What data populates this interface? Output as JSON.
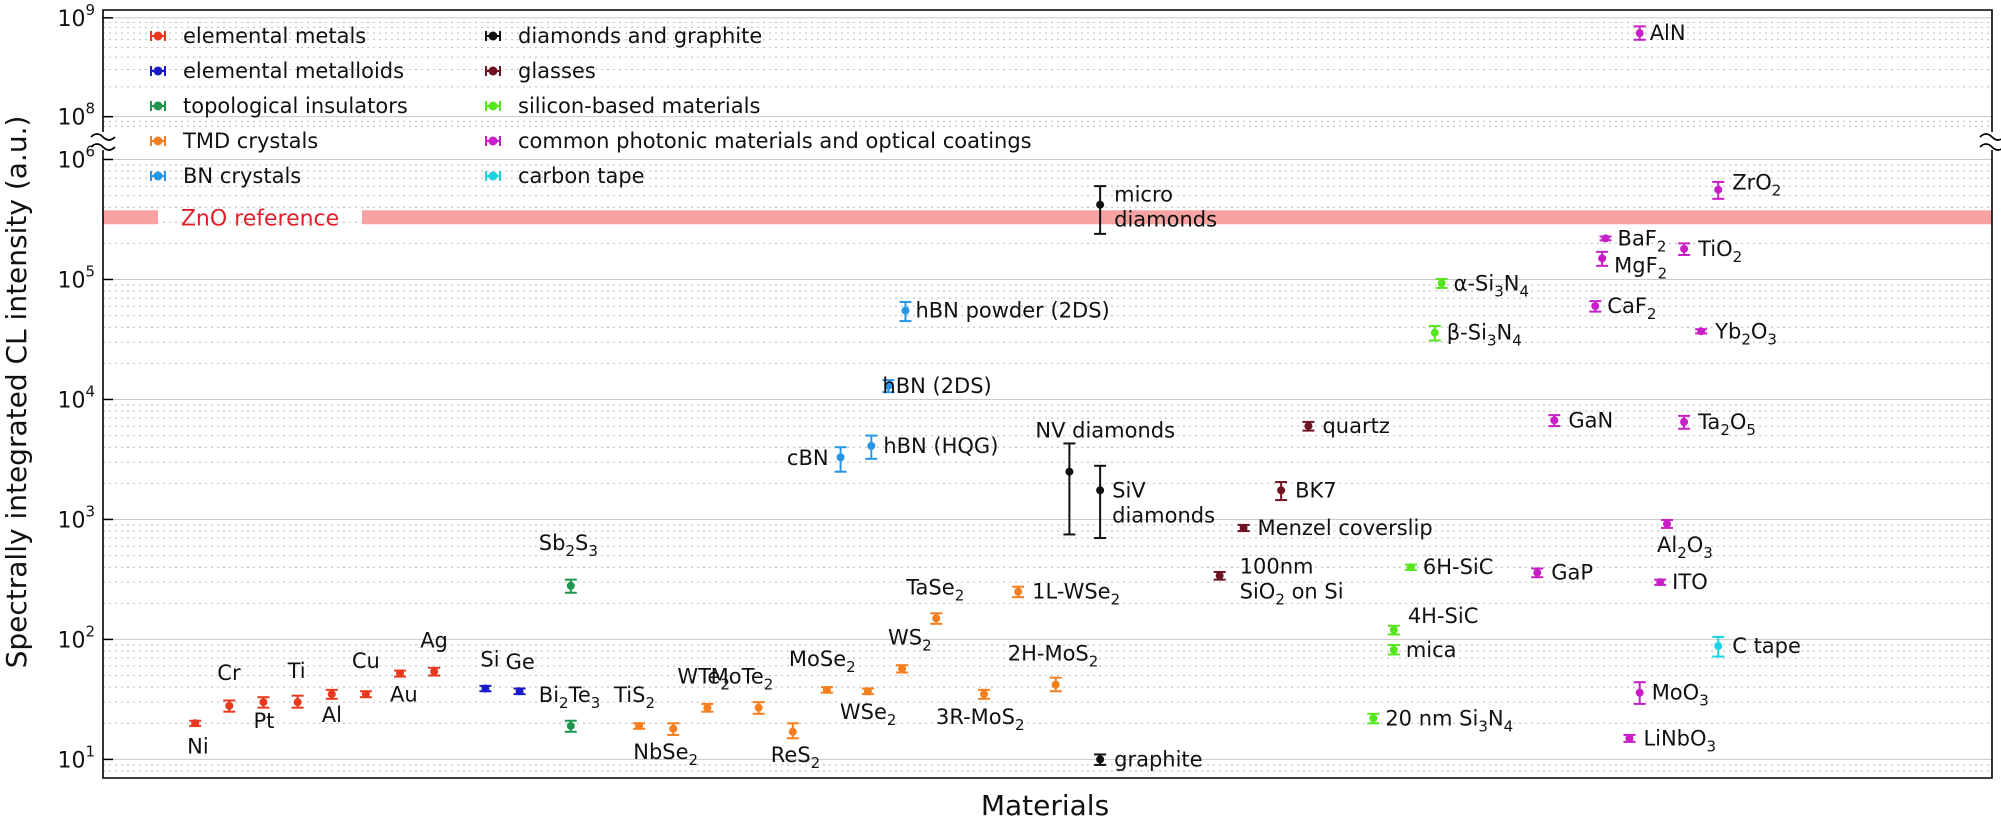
{
  "chart_data": {
    "type": "scatter",
    "xlabel": "Materials",
    "ylabel": "Spectrally integrated CL intensity (a.u.)",
    "yscale": "log",
    "ylim": [
      7,
      1200000000
    ],
    "axis_break": [
      1200000,
      80000000
    ],
    "y_ticks": [
      {
        "value": 10,
        "base": "10",
        "exp": "1"
      },
      {
        "value": 100,
        "base": "10",
        "exp": "2"
      },
      {
        "value": 1000,
        "base": "10",
        "exp": "3"
      },
      {
        "value": 10000,
        "base": "10",
        "exp": "4"
      },
      {
        "value": 100000,
        "base": "10",
        "exp": "5"
      },
      {
        "value": 1000000,
        "base": "10",
        "exp": "6"
      },
      {
        "value": 100000000,
        "base": "10",
        "exp": "8"
      },
      {
        "value": 1000000000,
        "base": "10",
        "exp": "9"
      }
    ],
    "grid": true,
    "legend_position": "top-left",
    "reference": {
      "label": "ZnO reference",
      "value": 330000,
      "color": "#f7a3a3",
      "text_color": "#e0202a"
    },
    "categories": [
      {
        "name": "elemental metals",
        "color": "#e8391e"
      },
      {
        "name": "elemental metalloids",
        "color": "#1a1ac8"
      },
      {
        "name": "topological insulators",
        "color": "#1e9650"
      },
      {
        "name": "TMD crystals",
        "color": "#f57e1e"
      },
      {
        "name": "BN crystals",
        "color": "#2896e6"
      },
      {
        "name": "diamonds and graphite",
        "color": "#111111"
      },
      {
        "name": "glasses",
        "color": "#6e1423"
      },
      {
        "name": "silicon-based materials",
        "color": "#55e61e"
      },
      {
        "name": "common photonic materials and optical coatings",
        "color": "#c81ec8"
      },
      {
        "name": "carbon tape",
        "color": "#1ed2e6"
      }
    ],
    "points": [
      {
        "label": "Ni",
        "cat": 0,
        "x": 1,
        "y": 20,
        "lo": 19,
        "hi": 21
      },
      {
        "label": "Cr",
        "cat": 0,
        "x": 2,
        "y": 28,
        "lo": 25,
        "hi": 31
      },
      {
        "label": "Pt",
        "cat": 0,
        "x": 3,
        "y": 30,
        "lo": 27,
        "hi": 33
      },
      {
        "label": "Ti",
        "cat": 0,
        "x": 4,
        "y": 30,
        "lo": 27,
        "hi": 34
      },
      {
        "label": "Al",
        "cat": 0,
        "x": 5,
        "y": 35,
        "lo": 32,
        "hi": 38
      },
      {
        "label": "Cu",
        "cat": 0,
        "x": 6,
        "y": 35,
        "lo": 33,
        "hi": 37
      },
      {
        "label": "Au",
        "cat": 0,
        "x": 7,
        "y": 52,
        "lo": 49,
        "hi": 55
      },
      {
        "label": "Ag",
        "cat": 0,
        "x": 8,
        "y": 54,
        "lo": 50,
        "hi": 58
      },
      {
        "label": "Si",
        "cat": 1,
        "x": 9.5,
        "y": 39,
        "lo": 37,
        "hi": 41
      },
      {
        "label": "Ge",
        "cat": 1,
        "x": 10.5,
        "y": 37,
        "lo": 35,
        "hi": 39
      },
      {
        "label": "Sb",
        "sub": "2",
        "label2": "S",
        "sub2": "3",
        "cat": 2,
        "x": 12,
        "y": 280,
        "lo": 245,
        "hi": 315
      },
      {
        "label": "Bi",
        "sub": "2",
        "label2": "Te",
        "sub2": "3",
        "cat": 2,
        "x": 12,
        "y": 19,
        "lo": 17,
        "hi": 21
      },
      {
        "label": "TiS",
        "sub": "2",
        "cat": 3,
        "x": 14,
        "y": 19,
        "lo": 18,
        "hi": 20
      },
      {
        "label": "NbSe",
        "sub": "2",
        "cat": 3,
        "x": 15,
        "y": 18,
        "lo": 16,
        "hi": 20
      },
      {
        "label": "WTe",
        "sub": "2",
        "cat": 3,
        "x": 16,
        "y": 27,
        "lo": 25,
        "hi": 29
      },
      {
        "label": "MoTe",
        "sub": "2",
        "cat": 3,
        "x": 17.5,
        "y": 27,
        "lo": 24,
        "hi": 30
      },
      {
        "label": "ReS",
        "sub": "2",
        "cat": 3,
        "x": 18.5,
        "y": 17,
        "lo": 15,
        "hi": 20
      },
      {
        "label": "MoSe",
        "sub": "2",
        "cat": 3,
        "x": 19.5,
        "y": 38,
        "lo": 36,
        "hi": 40
      },
      {
        "label": "WSe",
        "sub": "2",
        "cat": 3,
        "x": 20.7,
        "y": 37,
        "lo": 35,
        "hi": 39
      },
      {
        "label": "WS",
        "sub": "2",
        "cat": 3,
        "x": 21.7,
        "y": 57,
        "lo": 53,
        "hi": 61
      },
      {
        "label": "TaSe",
        "sub": "2",
        "cat": 3,
        "x": 22.7,
        "y": 150,
        "lo": 135,
        "hi": 165
      },
      {
        "label": "3R-MoS",
        "sub": "2",
        "cat": 3,
        "x": 24.1,
        "y": 35,
        "lo": 32,
        "hi": 38
      },
      {
        "label": "1L-WSe",
        "sub": "2",
        "cat": 3,
        "x": 25.1,
        "y": 250,
        "lo": 225,
        "hi": 275
      },
      {
        "label": "2H-MoS",
        "sub": "2",
        "cat": 3,
        "x": 26.2,
        "y": 42,
        "lo": 37,
        "hi": 48
      },
      {
        "label": "cBN",
        "cat": 4,
        "x": 19.9,
        "y": 3300,
        "lo": 2500,
        "hi": 4000
      },
      {
        "label": "hBN (HQG)",
        "cat": 4,
        "x": 20.8,
        "y": 4100,
        "lo": 3200,
        "hi": 5000
      },
      {
        "label": "hBN (2DS)",
        "cat": 4,
        "x": 21.3,
        "y": 13000,
        "lo": 11500,
        "hi": 14500
      },
      {
        "label": "hBN powder (2DS)",
        "cat": 4,
        "x": 21.8,
        "y": 55000,
        "lo": 45000,
        "hi": 65000
      },
      {
        "label": "NV diamonds",
        "cat": 5,
        "x": 26.6,
        "y": 2500,
        "lo": 750,
        "hi": 4300
      },
      {
        "label": "SiV",
        "label_line2": "diamonds",
        "cat": 5,
        "x": 27.5,
        "y": 1750,
        "lo": 700,
        "hi": 2800
      },
      {
        "label": "micro",
        "label_line2": "diamonds",
        "cat": 5,
        "x": 27.5,
        "y": 420000,
        "lo": 240000,
        "hi": 600000
      },
      {
        "label": "graphite",
        "cat": 5,
        "x": 27.5,
        "y": 10,
        "lo": 9,
        "hi": 11
      },
      {
        "label": "100nm",
        "label_line2": "SiO",
        "sub2": "2",
        "tail2": " on Si",
        "cat": 6,
        "x": 31,
        "y": 340,
        "lo": 315,
        "hi": 365
      },
      {
        "label": "Menzel coverslip",
        "cat": 6,
        "x": 31.7,
        "y": 850,
        "lo": 800,
        "hi": 900
      },
      {
        "label": "BK7",
        "cat": 6,
        "x": 32.8,
        "y": 1750,
        "lo": 1450,
        "hi": 2050
      },
      {
        "label": "quartz",
        "cat": 6,
        "x": 33.6,
        "y": 6000,
        "lo": 5500,
        "hi": 6500
      },
      {
        "label": "20 nm Si",
        "sub": "3",
        "tail": "N",
        "sub_b": "4",
        "cat": 7,
        "x": 35.5,
        "y": 22,
        "lo": 20,
        "hi": 24
      },
      {
        "label": "mica",
        "cat": 7,
        "x": 36.1,
        "y": 82,
        "lo": 75,
        "hi": 90
      },
      {
        "label": "4H-SiC",
        "cat": 7,
        "x": 36.1,
        "y": 120,
        "lo": 110,
        "hi": 130
      },
      {
        "label": "6H-SiC",
        "cat": 7,
        "x": 36.6,
        "y": 400,
        "lo": 380,
        "hi": 420
      },
      {
        "label": "β-Si",
        "sub": "3",
        "tail": "N",
        "sub_b": "4",
        "cat": 7,
        "x": 37.3,
        "y": 36000,
        "lo": 31000,
        "hi": 41000
      },
      {
        "label": "α-Si",
        "sub": "3",
        "tail": "N",
        "sub_b": "4",
        "cat": 7,
        "x": 37.5,
        "y": 93000,
        "lo": 85000,
        "hi": 101000
      },
      {
        "label": "GaP",
        "cat": 8,
        "x": 40.3,
        "y": 360,
        "lo": 330,
        "hi": 390
      },
      {
        "label": "GaN",
        "cat": 8,
        "x": 40.8,
        "y": 6700,
        "lo": 6000,
        "hi": 7400
      },
      {
        "label": "CaF",
        "sub": "2",
        "cat": 8,
        "x": 42,
        "y": 60000,
        "lo": 54000,
        "hi": 66000
      },
      {
        "label": "MgF",
        "sub": "2",
        "cat": 8,
        "x": 42.2,
        "y": 150000,
        "lo": 130000,
        "hi": 170000
      },
      {
        "label": "BaF",
        "sub": "2",
        "cat": 8,
        "x": 42.3,
        "y": 220000,
        "lo": 212000,
        "hi": 228000
      },
      {
        "label": "LiNbO",
        "sub": "3",
        "cat": 8,
        "x": 43,
        "y": 15,
        "lo": 14,
        "hi": 16
      },
      {
        "label": "MoO",
        "sub": "3",
        "cat": 8,
        "x": 43.3,
        "y": 36,
        "lo": 29,
        "hi": 44
      },
      {
        "label": "AlN",
        "cat": 8,
        "x": 43.3,
        "y": 700000000,
        "lo": 600000000,
        "hi": 820000000
      },
      {
        "label": "ITO",
        "cat": 8,
        "x": 43.9,
        "y": 300,
        "lo": 285,
        "hi": 315
      },
      {
        "label": "Al",
        "sub": "2",
        "tail": "O",
        "sub_b": "3",
        "cat": 8,
        "x": 44.1,
        "y": 920,
        "lo": 850,
        "hi": 990
      },
      {
        "label": "Ta",
        "sub": "2",
        "tail": "O",
        "sub_b": "5",
        "cat": 8,
        "x": 44.6,
        "y": 6500,
        "lo": 5700,
        "hi": 7300
      },
      {
        "label": "Yb",
        "sub": "2",
        "tail": "O",
        "sub_b": "3",
        "cat": 8,
        "x": 45.1,
        "y": 37000,
        "lo": 35500,
        "hi": 38500
      },
      {
        "label": "TiO",
        "sub": "2",
        "cat": 8,
        "x": 44.6,
        "y": 180000,
        "lo": 160000,
        "hi": 200000
      },
      {
        "label": "ZrO",
        "sub": "2",
        "cat": 8,
        "x": 45.6,
        "y": 560000,
        "lo": 470000,
        "hi": 650000
      },
      {
        "label": "C tape",
        "cat": 9,
        "x": 45.6,
        "y": 88,
        "lo": 72,
        "hi": 105
      }
    ]
  }
}
